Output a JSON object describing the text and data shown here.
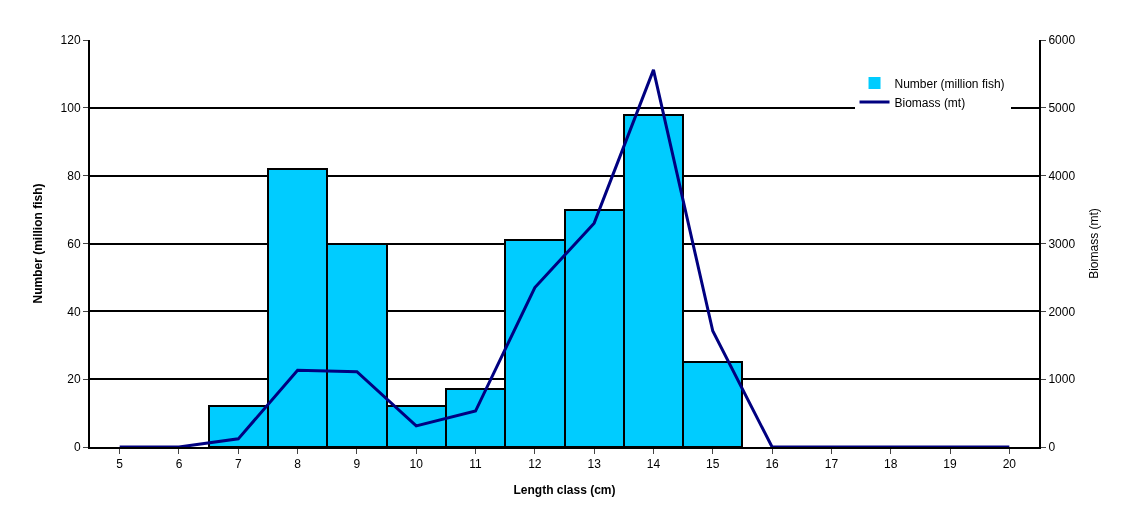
{
  "chart_data": {
    "type": "bar",
    "xlabel": "Length class (cm)",
    "ylabel": "Number (million fish)",
    "y2label": "Biomass (mt)",
    "categories": [
      "5",
      "6",
      "7",
      "8",
      "9",
      "10",
      "11",
      "12",
      "13",
      "14",
      "15",
      "16",
      "17",
      "18",
      "19",
      "20"
    ],
    "series": [
      {
        "name": "Number (million fish)",
        "color": "#00ccff",
        "values": [
          0,
          0,
          12,
          82,
          60,
          12,
          17,
          61,
          70,
          98,
          25,
          0,
          0,
          0,
          0,
          0
        ]
      },
      {
        "name": "Biomass (mt)",
        "type": "line",
        "axis": "y2",
        "color": "#000080",
        "values": [
          0,
          0,
          120,
          1130,
          1110,
          310,
          530,
          2350,
          3300,
          5560,
          1710,
          0,
          0,
          0,
          0,
          0
        ]
      }
    ],
    "ylim": [
      0,
      120
    ],
    "yticks": [
      0,
      20,
      40,
      60,
      80,
      100,
      120
    ],
    "y2lim": [
      0,
      6000
    ],
    "y2ticks": [
      0,
      1000,
      2000,
      3000,
      4000,
      5000,
      6000
    ],
    "grid": "y",
    "legend": "top right"
  }
}
